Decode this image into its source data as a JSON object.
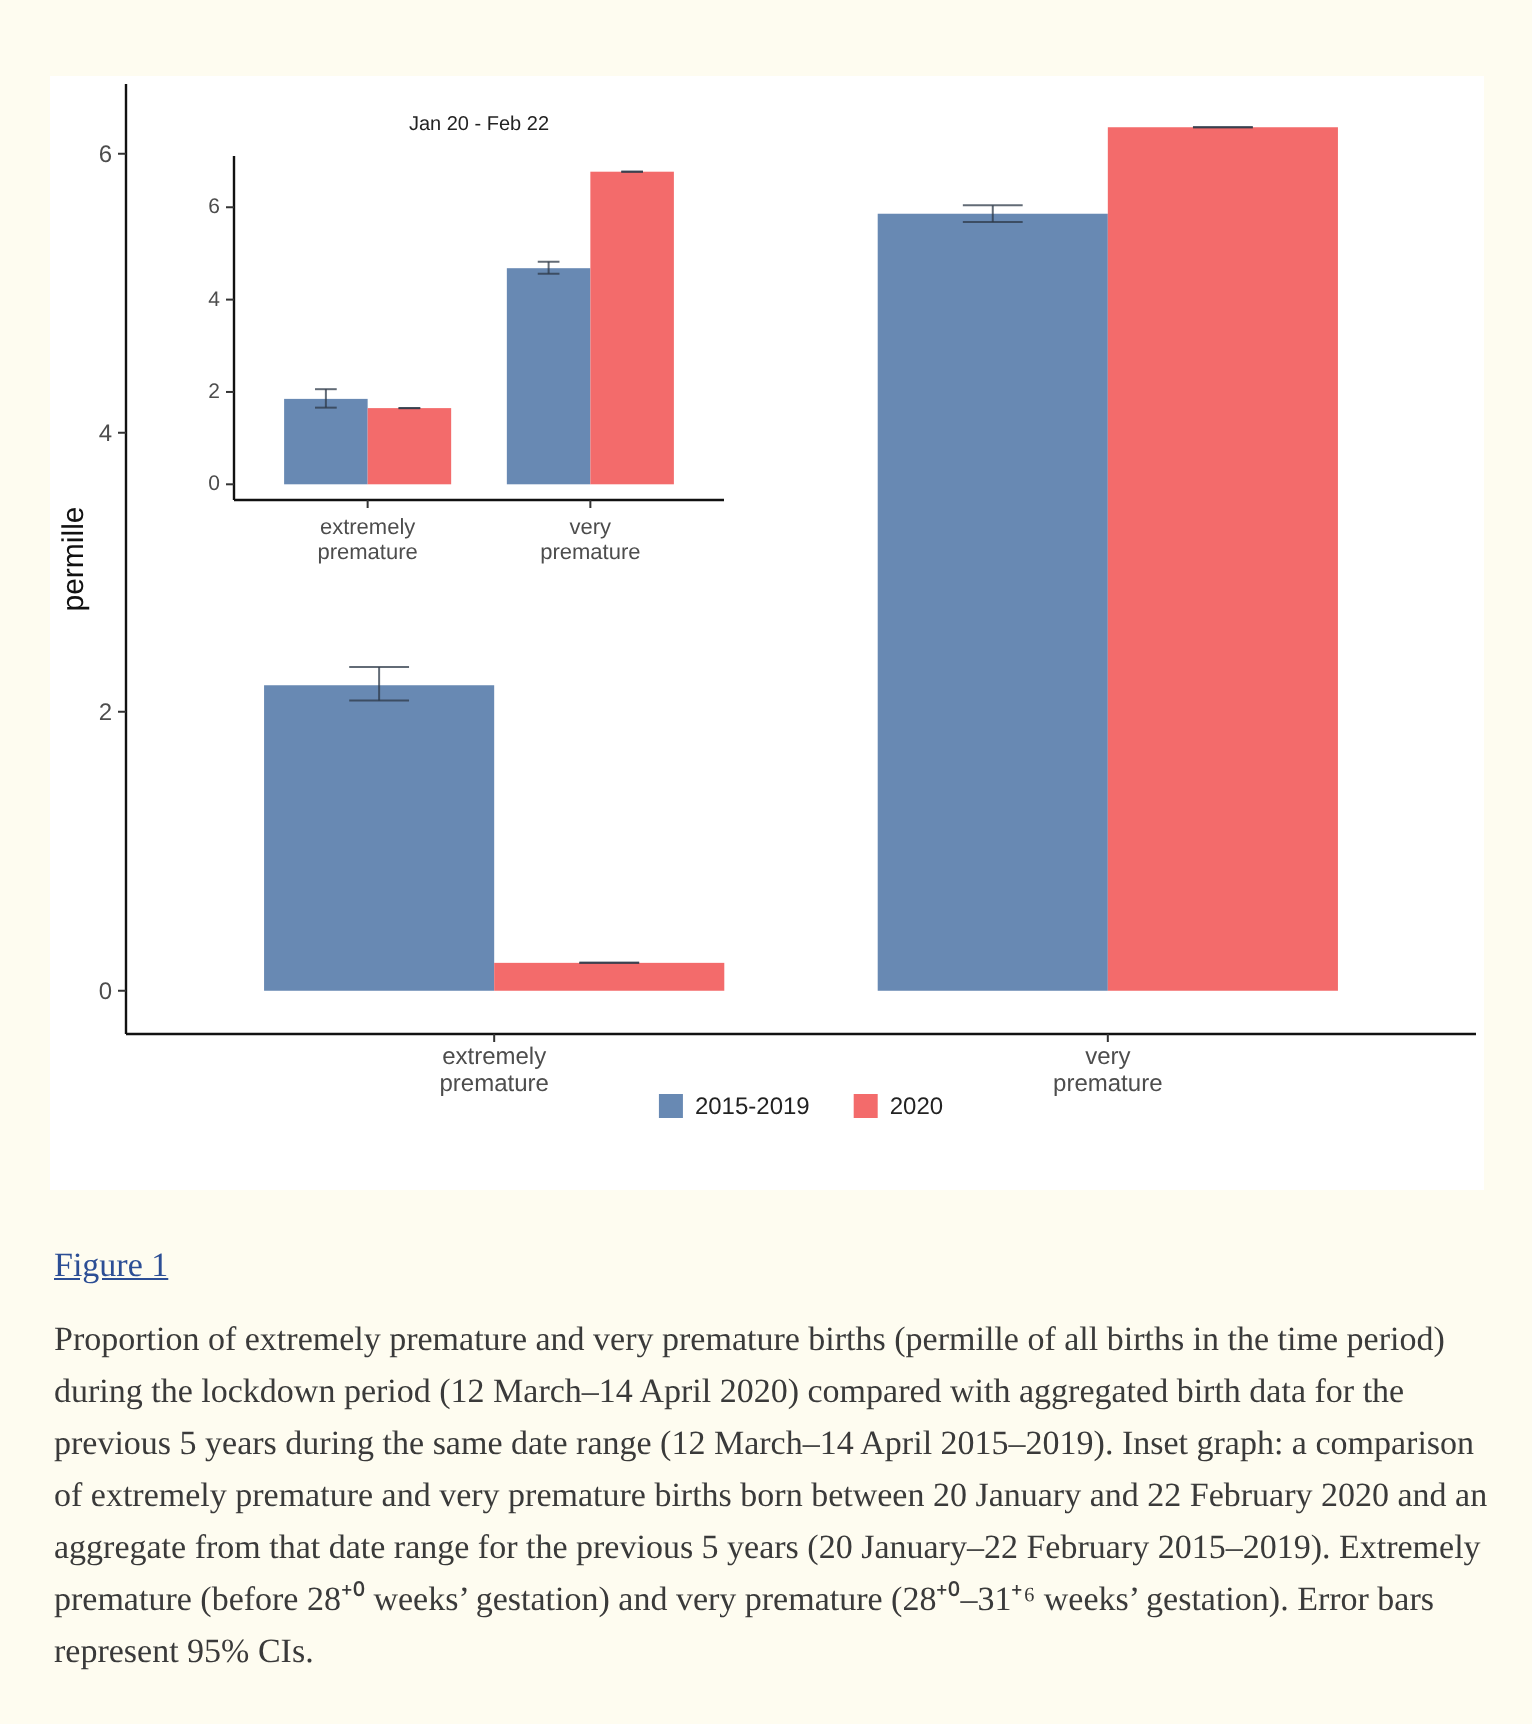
{
  "chart_data": [
    {
      "type": "bar",
      "ylabel": "permille",
      "categories": [
        "extremely\npremature",
        "very\npremature"
      ],
      "series": [
        {
          "name": "2015-2019",
          "color": "#6889b3",
          "values": [
            2.19,
            5.57
          ],
          "errors": [
            [
              2.08,
              2.32
            ],
            [
              5.51,
              5.63
            ]
          ]
        },
        {
          "name": "2020",
          "color": "#f36b6b",
          "values": [
            0.2,
            6.19
          ],
          "errors": [
            0,
            0
          ]
        }
      ],
      "ylim": [
        -0.31,
        6.5
      ],
      "yticks": [
        0,
        2,
        4,
        6
      ],
      "legend": "bottom",
      "annotations": [
        "Figure 1",
        "Proportion of extremely premature and very premature births (permille of all births in the time period) during the lockdown period (12 March–14 April 2020) compared with aggregated birth data for the previous 5 years during the same date range (12 March–14 April 2015–2019). Inset graph: a comparison of extremely premature and very premature births born between 20 January and 22 February 2020 and an aggregate from that date range for the previous 5 years (20 January–22 February 2015–2019). Extremely premature (before 28⁺⁰ weeks’ gestation) and very premature (28⁺⁰–31⁺⁶ weeks’ gestation). Error bars represent 95% CIs."
      ]
    },
    {
      "type": "bar",
      "title": "Jan 20 - Feb 22",
      "categories": [
        "extremely\npremature",
        "very\npremature"
      ],
      "series": [
        {
          "color": "#6889b3",
          "values": [
            1.85,
            4.68
          ],
          "errors": [
            [
              1.66,
              2.06
            ],
            [
              4.56,
              4.82
            ]
          ]
        },
        {
          "color": "#f36b6b",
          "values": [
            1.65,
            6.77
          ],
          "errors": [
            0,
            0
          ]
        }
      ],
      "ylim": [
        -0.34,
        7.11
      ],
      "yticks": [
        0,
        2,
        4,
        6
      ]
    }
  ]
}
